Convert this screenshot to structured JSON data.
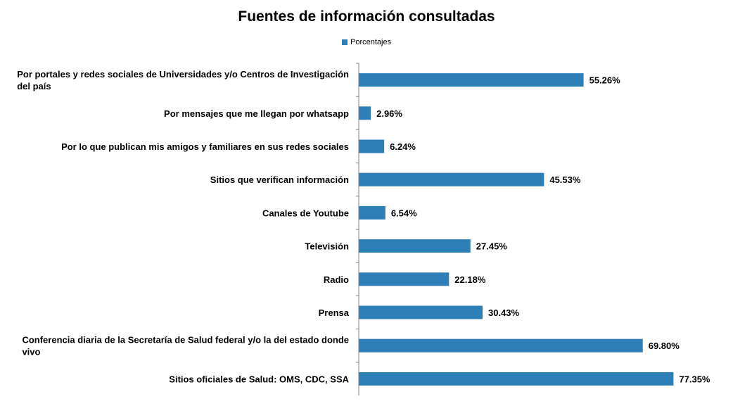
{
  "chart_data": {
    "type": "bar",
    "orientation": "horizontal",
    "title": "Fuentes de información consultadas",
    "legend": {
      "position": "top",
      "series_name": "Porcentajes"
    },
    "categories": [
      "Por portales y redes sociales de Universidades y/o Centros de Investigación del país",
      "Por mensajes que me llegan por whatsapp",
      "Por lo que publican mis amigos y familiares en sus redes sociales",
      "Sitios que verifican información",
      "Canales de Youtube",
      "Televisión",
      "Radio",
      "Prensa",
      "Conferencia diaria de la Secretaría de Salud federal y/o la del estado donde vivo",
      "Sitios oficiales de Salud: OMS, CDC, SSA"
    ],
    "series": [
      {
        "name": "Porcentajes",
        "values": [
          55.26,
          2.96,
          6.24,
          45.53,
          6.54,
          27.45,
          22.18,
          30.43,
          69.8,
          77.35
        ],
        "labels": [
          "55.26%",
          "2.96%",
          "6.24%",
          "45.53%",
          "6.54%",
          "27.45%",
          "22.18%",
          "30.43%",
          "69.80%",
          "77.35%"
        ]
      }
    ],
    "xlim": [
      0,
      80
    ],
    "grid": false,
    "color": "#2e7eb8"
  }
}
